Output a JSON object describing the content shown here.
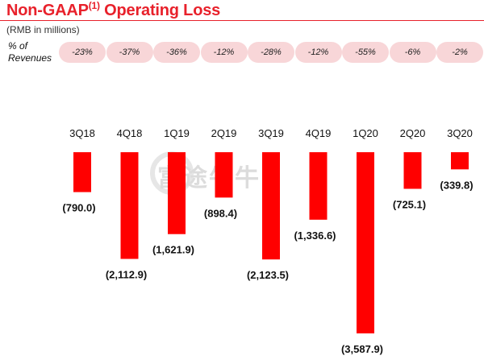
{
  "header": {
    "title_main": "Non-GAAP",
    "title_sup": "(1)",
    "title_rest": " Operating Loss",
    "subtitle": "(RMB in millions)",
    "pct_label_line1": "% of",
    "pct_label_line2": "Revenues",
    "watermark": "富途牛牛"
  },
  "colors": {
    "bar": "#ff0000",
    "accent": "#e8212b",
    "pill": "#f8d6d8"
  },
  "chart_data": {
    "type": "bar",
    "title": "Non-GAAP(1) Operating Loss",
    "ylabel": "RMB in millions",
    "categories": [
      "3Q18",
      "4Q18",
      "1Q19",
      "2Q19",
      "3Q19",
      "4Q19",
      "1Q20",
      "2Q20",
      "3Q20"
    ],
    "values": [
      -790.0,
      -2112.9,
      -1621.9,
      -898.4,
      -2123.5,
      -1336.6,
      -3587.9,
      -725.1,
      -339.8
    ],
    "value_labels": [
      "(790.0)",
      "(2,112.9)",
      "(1,621.9)",
      "(898.4)",
      "(2,123.5)",
      "(1,336.6)",
      "(3,587.9)",
      "(725.1)",
      "(339.8)"
    ],
    "pct_of_revenues": [
      "-23%",
      "-37%",
      "-36%",
      "-12%",
      "-28%",
      "-12%",
      "-55%",
      "-6%",
      "-2%"
    ],
    "grid": false,
    "legend": "none"
  }
}
